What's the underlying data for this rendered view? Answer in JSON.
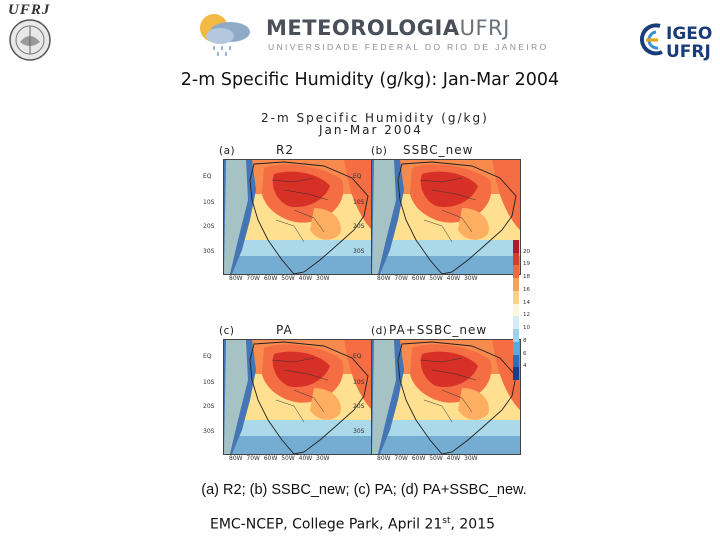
{
  "header": {
    "ufrj_logo_text": "UFRJ",
    "meteorologia_word": "METEOROLOGIA",
    "meteorologia_ufrj": "UFRJ",
    "meteorologia_subtitle": "UNIVERSIDADE FEDERAL DO RIO DE JANEIRO",
    "igeo_line1": "IGEO",
    "igeo_line2": "UFRJ"
  },
  "slide": {
    "title": "2-m Specific Humidity (g/kg): Jan-Mar 2004",
    "caption": "(a) R2; (b) SSBC_new; (c) PA; (d) PA+SSBC_new.",
    "footer_main": "EMC-NCEP, College Park, April 21",
    "footer_sup": "st",
    "footer_end": ", 2015"
  },
  "figure": {
    "title_line1": "2-m  Specific  Humidity  (g/kg)",
    "title_line2": "Jan-Mar  2004",
    "panels": [
      {
        "label": "(a)",
        "name": "R2"
      },
      {
        "label": "(b)",
        "name": "SSBC_new"
      },
      {
        "label": "(c)",
        "name": "PA"
      },
      {
        "label": "(d)",
        "name": "PA+SSBC_new"
      }
    ],
    "lat_ticks": [
      "EQ",
      "10S",
      "20S",
      "30S"
    ],
    "lon_ticks": [
      "80W",
      "70W",
      "60W",
      "50W",
      "40W",
      "30W"
    ],
    "colorbar": {
      "labels": [
        "20",
        "19",
        "18",
        "16",
        "14",
        "12",
        "10",
        "8",
        "6",
        "4"
      ],
      "colors": [
        "#b2182b",
        "#d6402b",
        "#ef6a3a",
        "#f5a25a",
        "#fdd08a",
        "#fff5dc",
        "#d4ecf6",
        "#9fd2ec",
        "#5ba8dd",
        "#2b6fbb",
        "#183f8f"
      ]
    },
    "field_colors": {
      "very_high": "#d73027",
      "high": "#f46d43",
      "mid_high": "#fdae61",
      "mid": "#fee090",
      "low_mid": "#e6f5d0",
      "low": "#abd9e9",
      "very_low": "#74add1",
      "lowest": "#4575b4",
      "ocean_warm": "#f88a4e"
    }
  }
}
